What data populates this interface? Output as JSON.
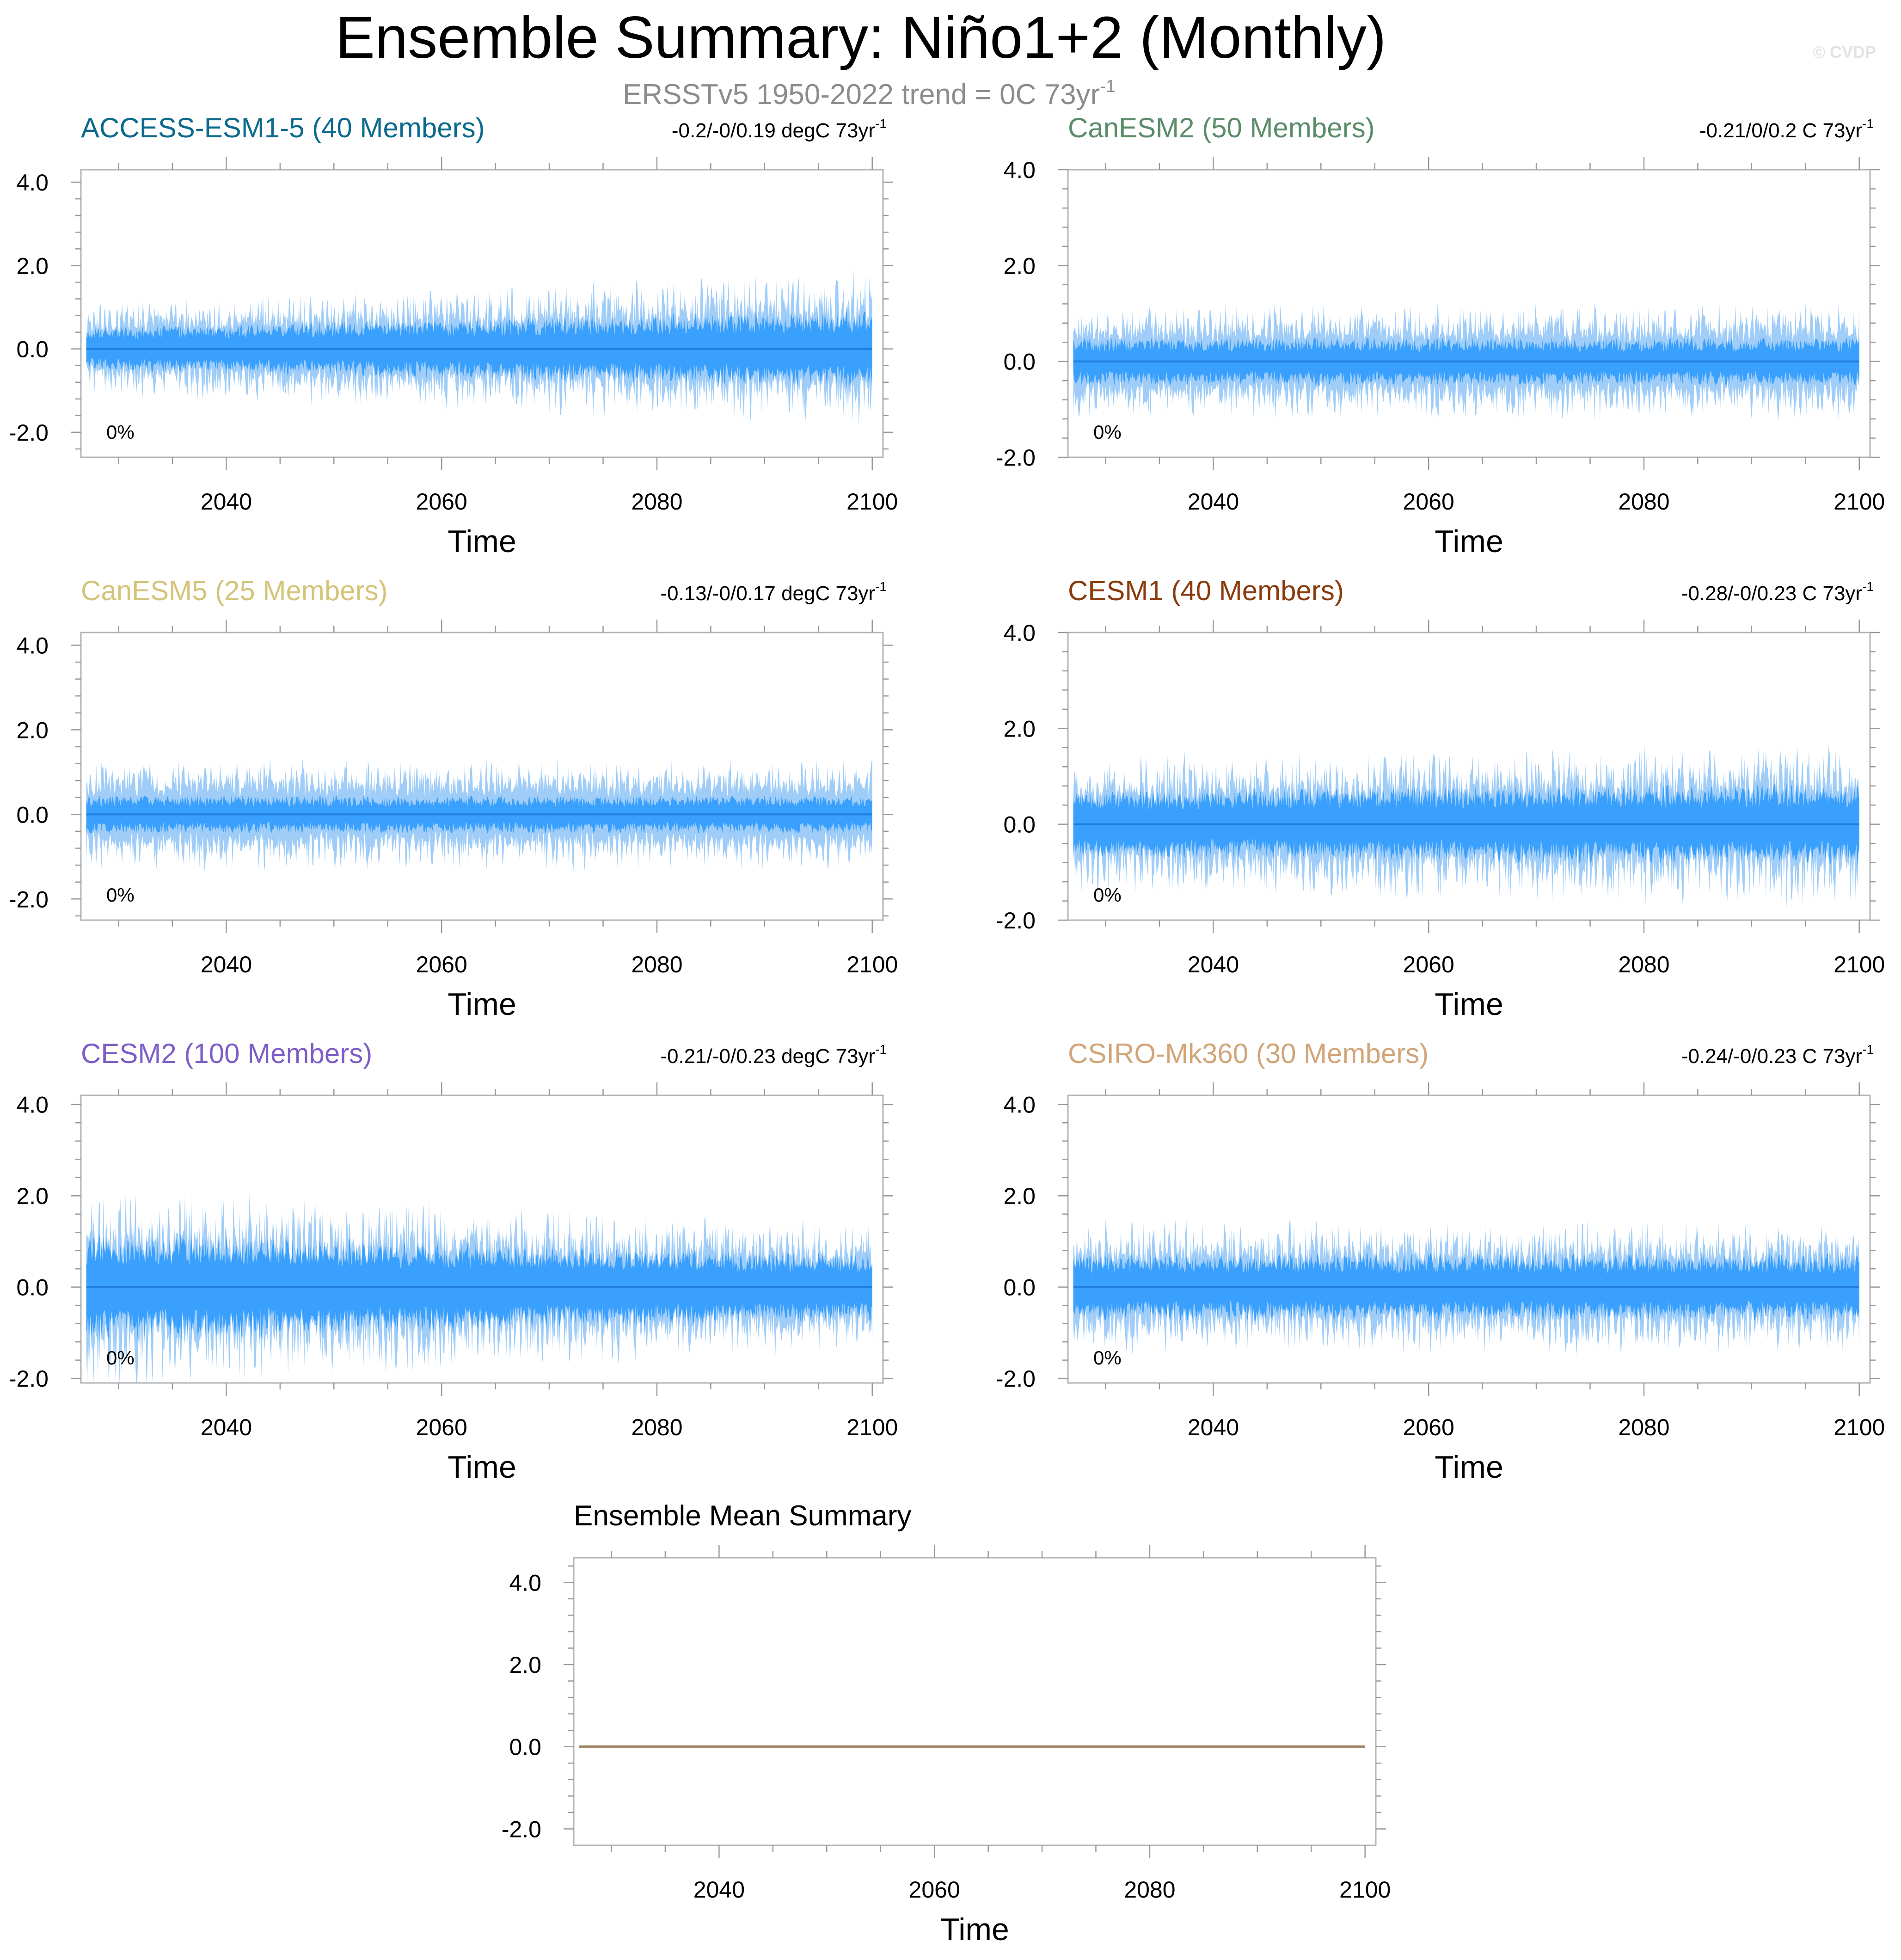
{
  "header": {
    "title": "Ensemble Summary: Niño1+2 (Monthly)",
    "subtitle_base": "ERSSTv5 1950-2022 trend = 0C 73yr",
    "subtitle_sup": "-1",
    "watermark": "© CVDP"
  },
  "colors": {
    "outer_band": "#9fcdf8",
    "inner_band": "#3aa0fd",
    "mean_line": "#1f7de0",
    "summary_line": "#a08a68",
    "frame": "#b3b3b3",
    "tick": "#999999"
  },
  "chart_data": [
    {
      "type": "area",
      "title": "ACCESS-ESM1-5 (40 Members)",
      "title_color": "#0b6a8c",
      "trend_text": "-0.2/-0/0.19 degC 73yr",
      "trend_sup": "-1",
      "percent_label": "0%",
      "xlabel": "Time",
      "xlim": [
        2026.5,
        2101
      ],
      "ylim": [
        -2.6,
        4.3
      ],
      "xticks": [
        2040,
        2060,
        2080,
        2100
      ],
      "yticks": [
        -2.0,
        0.0,
        2.0,
        4.0
      ],
      "ytick_labels": [
        "-2.0",
        "0.0",
        "2.0",
        "4.0"
      ],
      "x_range": [
        2027,
        2100
      ],
      "band_amplitude": {
        "outer": 1.4,
        "inner": 0.75,
        "growth": 0.3
      },
      "mean": 0.0
    },
    {
      "type": "area",
      "title": "CanESM2 (50 Members)",
      "title_color": "#5b8c6a",
      "trend_text": "-0.21/0/0.2 C 73yr",
      "trend_sup": "-1",
      "percent_label": "0%",
      "xlabel": "Time",
      "xlim": [
        2026.5,
        2101
      ],
      "ylim": [
        -2.0,
        4.0
      ],
      "xticks": [
        2040,
        2060,
        2080,
        2100
      ],
      "yticks": [
        -2.0,
        0.0,
        2.0,
        4.0
      ],
      "ytick_labels": [
        "-2.0",
        "0.0",
        "2.0",
        "4.0"
      ],
      "x_range": [
        2027,
        2100
      ],
      "band_amplitude": {
        "outer": 1.1,
        "inner": 0.5,
        "growth": 0.0
      },
      "mean": 0.0
    },
    {
      "type": "area",
      "title": "CanESM5 (25 Members)",
      "title_color": "#d4c479",
      "trend_text": "-0.13/-0/0.17 degC 73yr",
      "trend_sup": "-1",
      "percent_label": "0%",
      "xlabel": "Time",
      "xlim": [
        2026.5,
        2101
      ],
      "ylim": [
        -2.5,
        4.3
      ],
      "xticks": [
        2040,
        2060,
        2080,
        2100
      ],
      "yticks": [
        -2.0,
        0.0,
        2.0,
        4.0
      ],
      "ytick_labels": [
        "-2.0",
        "0.0",
        "2.0",
        "4.0"
      ],
      "x_range": [
        2027,
        2100
      ],
      "band_amplitude": {
        "outer": 1.2,
        "inner": 0.45,
        "growth": 0.0
      },
      "mean": 0.0
    },
    {
      "type": "area",
      "title": "CESM1 (40 Members)",
      "title_color": "#8a3a0c",
      "trend_text": "-0.28/-0/0.23 C 73yr",
      "trend_sup": "-1",
      "percent_label": "0%",
      "xlabel": "Time",
      "xlim": [
        2026.5,
        2101
      ],
      "ylim": [
        -2.0,
        4.0
      ],
      "xticks": [
        2040,
        2060,
        2080,
        2100
      ],
      "yticks": [
        -2.0,
        0.0,
        2.0,
        4.0
      ],
      "ytick_labels": [
        "-2.0",
        "0.0",
        "2.0",
        "4.0"
      ],
      "x_range": [
        2027,
        2100
      ],
      "band_amplitude": {
        "outer": 1.5,
        "inner": 0.8,
        "growth": 0.1
      },
      "mean": 0.0
    },
    {
      "type": "area",
      "title": "CESM2 (100 Members)",
      "title_color": "#7e5ec6",
      "trend_text": "-0.21/-0/0.23 degC 73yr",
      "trend_sup": "-1",
      "percent_label": "0%",
      "xlabel": "Time",
      "xlim": [
        2026.5,
        2101
      ],
      "ylim": [
        -2.1,
        4.2
      ],
      "xticks": [
        2040,
        2060,
        2080,
        2100
      ],
      "yticks": [
        -2.0,
        0.0,
        2.0,
        4.0
      ],
      "ytick_labels": [
        "-2.0",
        "0.0",
        "2.0",
        "4.0"
      ],
      "x_range": [
        2027,
        2100
      ],
      "band_amplitude": {
        "outer": 1.7,
        "inner": 1.0,
        "growth": -0.25
      },
      "mean": 0.0
    },
    {
      "type": "area",
      "title": "CSIRO-Mk360 (30 Members)",
      "title_color": "#d1a57a",
      "trend_text": "-0.24/-0/0.23 C 73yr",
      "trend_sup": "-1",
      "percent_label": "0%",
      "xlabel": "Time",
      "xlim": [
        2026.5,
        2101
      ],
      "ylim": [
        -2.1,
        4.2
      ],
      "xticks": [
        2040,
        2060,
        2080,
        2100
      ],
      "yticks": [
        -2.0,
        0.0,
        2.0,
        4.0
      ],
      "ytick_labels": [
        "-2.0",
        "0.0",
        "2.0",
        "4.0"
      ],
      "x_range": [
        2027,
        2100
      ],
      "band_amplitude": {
        "outer": 1.35,
        "inner": 0.75,
        "growth": 0.0
      },
      "mean": 0.0
    },
    {
      "type": "line",
      "title": "Ensemble Mean Summary",
      "title_color": "#000000",
      "xlabel": "Time",
      "xlim": [
        2026.5,
        2101
      ],
      "ylim": [
        -2.4,
        4.6
      ],
      "xticks": [
        2040,
        2060,
        2080,
        2100
      ],
      "yticks": [
        -2.0,
        0.0,
        2.0,
        4.0
      ],
      "ytick_labels": [
        "-2.0",
        "0.0",
        "2.0",
        "4.0"
      ],
      "series": [
        {
          "x": [
            2027,
            2100
          ],
          "y": [
            0.0,
            0.0
          ]
        }
      ]
    }
  ]
}
